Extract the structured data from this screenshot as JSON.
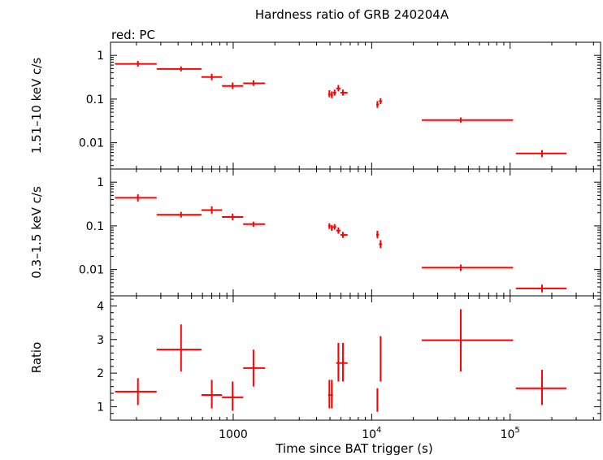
{
  "chart_data": {
    "type": "scatter",
    "title": "Hardness ratio of GRB 240204A",
    "subtitle": "red: PC",
    "xlabel": "Time since BAT trigger (s)",
    "x_scale": "log",
    "xlim": [
      130,
      450000
    ],
    "x_ticks": [
      {
        "value": 1000,
        "label": "1000",
        "exp": ""
      },
      {
        "value": 10000,
        "label": "10",
        "exp": "4"
      },
      {
        "value": 100000,
        "label": "10",
        "exp": "5"
      }
    ],
    "color": "#ff0000",
    "panels": [
      {
        "id": "hard",
        "ylabel": "1.51–10 keV c/s",
        "y_scale": "log",
        "ylim": [
          0.0025,
          2.0
        ],
        "y_ticks": [
          {
            "value": 1,
            "label": "1"
          },
          {
            "value": 0.1,
            "label": "0.1"
          },
          {
            "value": 0.01,
            "label": "0.01"
          }
        ],
        "points": [
          {
            "x": 205,
            "x_lo": 140,
            "x_hi": 280,
            "y": 0.64,
            "y_lo": 0.55,
            "y_hi": 0.75
          },
          {
            "x": 420,
            "x_lo": 280,
            "x_hi": 590,
            "y": 0.49,
            "y_lo": 0.43,
            "y_hi": 0.56
          },
          {
            "x": 700,
            "x_lo": 590,
            "x_hi": 830,
            "y": 0.32,
            "y_lo": 0.27,
            "y_hi": 0.38
          },
          {
            "x": 990,
            "x_lo": 830,
            "x_hi": 1180,
            "y": 0.2,
            "y_lo": 0.17,
            "y_hi": 0.24
          },
          {
            "x": 1400,
            "x_lo": 1180,
            "x_hi": 1700,
            "y": 0.23,
            "y_lo": 0.2,
            "y_hi": 0.27
          },
          {
            "x": 4950,
            "x_lo": 4850,
            "x_hi": 5050,
            "y": 0.13,
            "y_lo": 0.11,
            "y_hi": 0.16
          },
          {
            "x": 5150,
            "x_lo": 5050,
            "x_hi": 5250,
            "y": 0.125,
            "y_lo": 0.105,
            "y_hi": 0.15
          },
          {
            "x": 5400,
            "x_lo": 5250,
            "x_hi": 5550,
            "y": 0.14,
            "y_lo": 0.12,
            "y_hi": 0.165
          },
          {
            "x": 5750,
            "x_lo": 5550,
            "x_hi": 5950,
            "y": 0.175,
            "y_lo": 0.15,
            "y_hi": 0.21
          },
          {
            "x": 6200,
            "x_lo": 5950,
            "x_hi": 6700,
            "y": 0.14,
            "y_lo": 0.12,
            "y_hi": 0.165
          },
          {
            "x": 11000,
            "x_lo": 10800,
            "x_hi": 11300,
            "y": 0.075,
            "y_lo": 0.063,
            "y_hi": 0.09
          },
          {
            "x": 11600,
            "x_lo": 11300,
            "x_hi": 11900,
            "y": 0.09,
            "y_lo": 0.077,
            "y_hi": 0.105
          },
          {
            "x": 44000,
            "x_lo": 23000,
            "x_hi": 105000,
            "y": 0.033,
            "y_lo": 0.029,
            "y_hi": 0.038
          },
          {
            "x": 170000,
            "x_lo": 110000,
            "x_hi": 255000,
            "y": 0.0057,
            "y_lo": 0.0047,
            "y_hi": 0.0068
          }
        ]
      },
      {
        "id": "soft",
        "ylabel": "0.3–1.5 keV c/s",
        "y_scale": "log",
        "ylim": [
          0.0025,
          2.0
        ],
        "y_ticks": [
          {
            "value": 1,
            "label": "1"
          },
          {
            "value": 0.1,
            "label": "0.1"
          },
          {
            "value": 0.01,
            "label": "0.01"
          }
        ],
        "points": [
          {
            "x": 205,
            "x_lo": 140,
            "x_hi": 280,
            "y": 0.44,
            "y_lo": 0.36,
            "y_hi": 0.53
          },
          {
            "x": 420,
            "x_lo": 280,
            "x_hi": 590,
            "y": 0.18,
            "y_lo": 0.155,
            "y_hi": 0.21
          },
          {
            "x": 700,
            "x_lo": 590,
            "x_hi": 830,
            "y": 0.23,
            "y_lo": 0.19,
            "y_hi": 0.28
          },
          {
            "x": 990,
            "x_lo": 830,
            "x_hi": 1180,
            "y": 0.16,
            "y_lo": 0.135,
            "y_hi": 0.19
          },
          {
            "x": 1400,
            "x_lo": 1180,
            "x_hi": 1700,
            "y": 0.11,
            "y_lo": 0.095,
            "y_hi": 0.125
          },
          {
            "x": 4950,
            "x_lo": 4850,
            "x_hi": 5050,
            "y": 0.1,
            "y_lo": 0.085,
            "y_hi": 0.115
          },
          {
            "x": 5150,
            "x_lo": 5050,
            "x_hi": 5250,
            "y": 0.09,
            "y_lo": 0.077,
            "y_hi": 0.105
          },
          {
            "x": 5400,
            "x_lo": 5250,
            "x_hi": 5550,
            "y": 0.095,
            "y_lo": 0.082,
            "y_hi": 0.11
          },
          {
            "x": 5750,
            "x_lo": 5550,
            "x_hi": 5950,
            "y": 0.078,
            "y_lo": 0.066,
            "y_hi": 0.092
          },
          {
            "x": 6200,
            "x_lo": 5950,
            "x_hi": 6700,
            "y": 0.062,
            "y_lo": 0.053,
            "y_hi": 0.073
          },
          {
            "x": 11000,
            "x_lo": 10800,
            "x_hi": 11300,
            "y": 0.063,
            "y_lo": 0.052,
            "y_hi": 0.077
          },
          {
            "x": 11600,
            "x_lo": 11300,
            "x_hi": 11900,
            "y": 0.038,
            "y_lo": 0.031,
            "y_hi": 0.047
          },
          {
            "x": 44000,
            "x_lo": 23000,
            "x_hi": 105000,
            "y": 0.011,
            "y_lo": 0.0093,
            "y_hi": 0.013
          },
          {
            "x": 170000,
            "x_lo": 110000,
            "x_hi": 255000,
            "y": 0.0037,
            "y_lo": 0.003,
            "y_hi": 0.0045
          }
        ]
      },
      {
        "id": "ratio",
        "ylabel": "Ratio",
        "y_scale": "linear",
        "ylim": [
          0.6,
          4.3
        ],
        "y_ticks": [
          {
            "value": 1,
            "label": "1"
          },
          {
            "value": 2,
            "label": "2"
          },
          {
            "value": 3,
            "label": "3"
          },
          {
            "value": 4,
            "label": "4"
          }
        ],
        "points": [
          {
            "x": 205,
            "x_lo": 140,
            "x_hi": 280,
            "y": 1.45,
            "y_lo": 1.05,
            "y_hi": 1.85
          },
          {
            "x": 420,
            "x_lo": 280,
            "x_hi": 590,
            "y": 2.7,
            "y_lo": 2.05,
            "y_hi": 3.45
          },
          {
            "x": 700,
            "x_lo": 590,
            "x_hi": 830,
            "y": 1.35,
            "y_lo": 0.95,
            "y_hi": 1.8
          },
          {
            "x": 990,
            "x_lo": 830,
            "x_hi": 1180,
            "y": 1.28,
            "y_lo": 0.88,
            "y_hi": 1.75
          },
          {
            "x": 1400,
            "x_lo": 1180,
            "x_hi": 1700,
            "y": 2.15,
            "y_lo": 1.6,
            "y_hi": 2.7
          },
          {
            "x": 4950,
            "x_lo": 4850,
            "x_hi": 5050,
            "y": 1.35,
            "y_lo": 0.95,
            "y_hi": 1.8
          },
          {
            "x": 5150,
            "x_lo": 5050,
            "x_hi": 5250,
            "y": 1.35,
            "y_lo": 0.95,
            "y_hi": 1.8
          },
          {
            "x": 5750,
            "x_lo": 5550,
            "x_hi": 5950,
            "y": 2.3,
            "y_lo": 1.75,
            "y_hi": 2.9
          },
          {
            "x": 6200,
            "x_lo": 5950,
            "x_hi": 6700,
            "y": 2.3,
            "y_lo": 1.75,
            "y_hi": 2.9
          },
          {
            "x": 11000,
            "x_lo": 10900,
            "x_hi": 11100,
            "y": 1.2,
            "y_lo": 0.85,
            "y_hi": 1.55
          },
          {
            "x": 11600,
            "x_lo": 11500,
            "x_hi": 11700,
            "y": 2.4,
            "y_lo": 1.75,
            "y_hi": 3.1
          },
          {
            "x": 44000,
            "x_lo": 23000,
            "x_hi": 105000,
            "y": 2.98,
            "y_lo": 2.05,
            "y_hi": 3.9
          },
          {
            "x": 170000,
            "x_lo": 110000,
            "x_hi": 255000,
            "y": 1.55,
            "y_lo": 1.05,
            "y_hi": 2.1
          }
        ]
      }
    ]
  }
}
